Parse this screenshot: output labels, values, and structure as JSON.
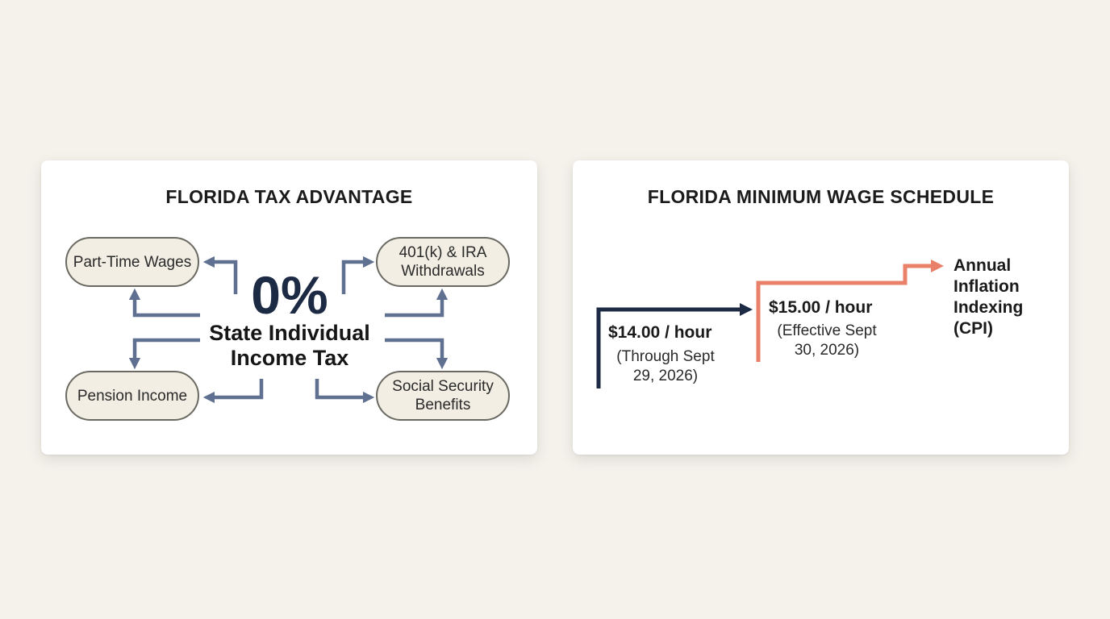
{
  "tax_card": {
    "title": "FLORIDA TAX ADVANTAGE",
    "rate": "0%",
    "rate_label": "State Individual Income Tax",
    "items": [
      {
        "label": "Part-Time Wages"
      },
      {
        "label": "401(k) & IRA Withdrawals"
      },
      {
        "label": "Pension Income"
      },
      {
        "label": "Social Security Benefits"
      }
    ]
  },
  "wage_card": {
    "title": "FLORIDA MINIMUM WAGE SCHEDULE",
    "steps": [
      {
        "amount": "$14.00 / hour",
        "note": "(Through Sept 29, 2026)"
      },
      {
        "amount": "$15.00 / hour",
        "note": "(Effective Sept 30, 2026)"
      }
    ],
    "future": "Annual Inflation Indexing (CPI)"
  },
  "colors": {
    "background": "#f4f2eb",
    "navy": "#1c2a44",
    "arrow_slate": "#5f7090",
    "accent_salmon": "#e8806a",
    "pill_fill": "#f2eee3"
  }
}
